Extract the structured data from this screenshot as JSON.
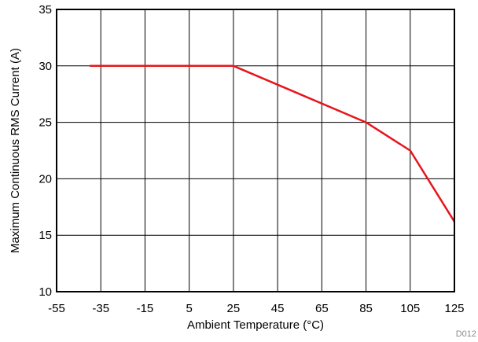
{
  "chart_data": {
    "type": "line",
    "title": "",
    "xlabel": "Ambient Temperature (°C)",
    "ylabel": "Maximum Continuous RMS Current (A)",
    "xlim": [
      -55,
      125
    ],
    "ylim": [
      10,
      35
    ],
    "xticks": [
      -55,
      -35,
      -15,
      5,
      25,
      45,
      65,
      85,
      105,
      125
    ],
    "yticks": [
      10,
      15,
      20,
      25,
      30,
      35
    ],
    "grid": true,
    "legend": "none",
    "series": [
      {
        "color": "#e8141c",
        "x": [
          -40,
          25,
          85,
          105,
          125
        ],
        "y": [
          30,
          30,
          25,
          22.5,
          16.2
        ]
      }
    ],
    "annotations": [
      {
        "text": "D012"
      }
    ]
  }
}
